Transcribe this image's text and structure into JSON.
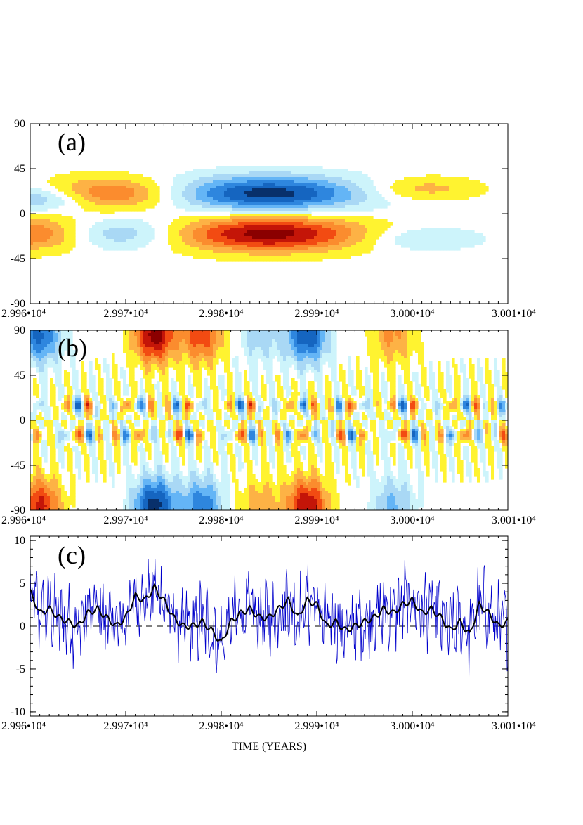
{
  "chart_data": [
    {
      "panel": "(a)",
      "type": "heatmap",
      "x_ticks": [
        "2.996•10⁴",
        "2.997•10⁴",
        "2.998•10⁴",
        "2.999•10⁴",
        "3.000•10⁴",
        "3.001•10⁴"
      ],
      "y_ticks": [
        "90",
        "45",
        "0",
        "-45",
        "-90"
      ],
      "xlim": [
        29960,
        30010
      ],
      "ylim": [
        -90,
        90
      ],
      "palette": [
        "#08306b",
        "#1565c0",
        "#2e86de",
        "#64b5f6",
        "#a9d8f5",
        "#cdf4fb",
        "#ffffff",
        "#fff330",
        "#fdb245",
        "#fb8c2e",
        "#f24b12",
        "#c41508",
        "#8b0000"
      ],
      "features": [
        {
          "t": 29961,
          "lat": 15,
          "sign": -1,
          "amp": 0.55,
          "dt": 6,
          "dlat": 13
        },
        {
          "t": 29961,
          "lat": -20,
          "sign": 1,
          "amp": 0.75,
          "dt": 7,
          "dlat": 17
        },
        {
          "t": 29968,
          "lat": 20,
          "sign": 1,
          "amp": 0.7,
          "dt": 7,
          "dlat": 16
        },
        {
          "t": 29968,
          "lat": -20,
          "sign": -1,
          "amp": 0.6,
          "dt": 7,
          "dlat": 16
        },
        {
          "t": 29985,
          "lat": 20,
          "sign": -1,
          "amp": 1.0,
          "dt": 10,
          "dlat": 18
        },
        {
          "t": 29985,
          "lat": -20,
          "sign": 1,
          "amp": 1.0,
          "dt": 10,
          "dlat": 18
        },
        {
          "t": 30001,
          "lat": 25,
          "sign": 1,
          "amp": 0.35,
          "dt": 6,
          "dlat": 12
        },
        {
          "t": 30001,
          "lat": -25,
          "sign": -1,
          "amp": 0.3,
          "dt": 6,
          "dlat": 12
        }
      ]
    },
    {
      "panel": "(b)",
      "type": "heatmap",
      "x_ticks": [
        "2.996•10⁴",
        "2.997•10⁴",
        "2.998•10⁴",
        "2.999•10⁴",
        "3.000•10⁴",
        "3.001•10⁴"
      ],
      "y_ticks": [
        "90",
        "45",
        "0",
        "-45",
        "-90"
      ],
      "xlim": [
        29960,
        30010
      ],
      "ylim": [
        -90,
        90
      ],
      "polar_features": [
        {
          "t": 29961,
          "sign": -1,
          "amp": 0.8
        },
        {
          "t": 29973,
          "sign": 1,
          "amp": 1.0
        },
        {
          "t": 29978,
          "sign": 1,
          "amp": 0.7
        },
        {
          "t": 29984,
          "sign": -1,
          "amp": 0.35
        },
        {
          "t": 29989,
          "sign": -1,
          "amp": 0.9
        },
        {
          "t": 29998,
          "sign": 1,
          "amp": 0.45
        }
      ]
    },
    {
      "panel": "(c)",
      "type": "line",
      "xlabel": "TIME (YEARS)",
      "x_ticks": [
        "2.996•10⁴",
        "2.997•10⁴",
        "2.998•10⁴",
        "2.999•10⁴",
        "3.000•10⁴",
        "3.001•10⁴"
      ],
      "y_ticks": [
        "10",
        "5",
        "0",
        "-5",
        "-10"
      ],
      "xlim": [
        29960,
        30010
      ],
      "ylim": [
        -10.5,
        10.5
      ],
      "series": [
        {
          "color": "#0000cc",
          "style": "thin"
        },
        {
          "color": "#000000",
          "style": "thick",
          "x": [
            29960,
            29961,
            29962,
            29963,
            29964,
            29965,
            29966,
            29967,
            29968,
            29969,
            29970,
            29971,
            29972,
            29973,
            29974,
            29975,
            29976,
            29977,
            29978,
            29979,
            29980,
            29981,
            29982,
            29983,
            29984,
            29985,
            29986,
            29987,
            29988,
            29989,
            29990,
            29991,
            29992,
            29993,
            29994,
            29995,
            29996,
            29997,
            29998,
            29999,
            30000,
            30001,
            30002,
            30003,
            30004,
            30005,
            30006,
            30007,
            30008,
            30009,
            30010
          ],
          "y": [
            4,
            1.5,
            2,
            1,
            0.5,
            0,
            1.5,
            2,
            1,
            0,
            1,
            3.5,
            3,
            4.5,
            3,
            1,
            0,
            0,
            0.5,
            -0.5,
            -2,
            0.5,
            1.5,
            2,
            1,
            1,
            2,
            3,
            1,
            3,
            2.5,
            0,
            0.5,
            -0.5,
            0,
            0.5,
            1,
            2,
            1.5,
            2.5,
            3,
            1.5,
            2,
            1,
            -0.5,
            0.5,
            -1,
            2.5,
            1.5,
            0,
            0.5
          ]
        }
      ],
      "reference_line": {
        "y": 0,
        "style": "dashed"
      }
    }
  ]
}
